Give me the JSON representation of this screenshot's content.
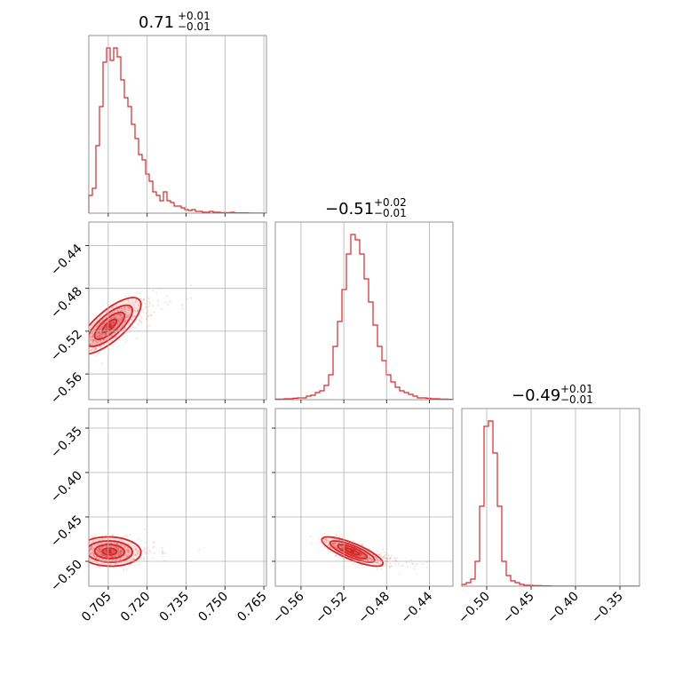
{
  "chart_data": {
    "type": "corner",
    "color": "#d62728",
    "parameters": [
      {
        "title": {
          "value": "0.71",
          "plus": "+0.01",
          "minus": "−0.01"
        },
        "range": [
          0.6975,
          0.766
        ],
        "ticks": [
          0.705,
          0.72,
          0.735,
          0.75,
          0.765
        ],
        "tick_labels": [
          "0.705",
          "0.720",
          "0.735",
          "0.750",
          "0.765"
        ],
        "histogram": [
          0.1,
          0.14,
          0.38,
          0.6,
          0.85,
          0.93,
          0.86,
          0.93,
          0.88,
          0.75,
          0.65,
          0.6,
          0.5,
          0.42,
          0.33,
          0.3,
          0.22,
          0.18,
          0.12,
          0.1,
          0.07,
          0.12,
          0.07,
          0.06,
          0.04,
          0.04,
          0.03,
          0.02,
          0.015,
          0.02,
          0.01,
          0.01,
          0.005,
          0.005,
          0.01,
          0.005,
          0.005,
          0.003,
          0.003,
          0.003,
          0.005,
          0.002,
          0.002,
          0.002,
          0.002,
          0.001,
          0.001,
          0.001,
          0.001,
          0.001
        ]
      },
      {
        "title": {
          "value": "−0.51",
          "plus": "+0.02",
          "minus": "−0.01"
        },
        "range": [
          -0.584,
          -0.418
        ],
        "ticks": [
          -0.56,
          -0.52,
          -0.48,
          -0.44
        ],
        "tick_labels": [
          "−0.56",
          "−0.52",
          "−0.48",
          "−0.44"
        ],
        "histogram": [
          0.003,
          0.003,
          0.005,
          0.005,
          0.008,
          0.01,
          0.01,
          0.02,
          0.025,
          0.04,
          0.05,
          0.08,
          0.14,
          0.3,
          0.44,
          0.62,
          0.82,
          0.93,
          0.9,
          0.82,
          0.68,
          0.55,
          0.42,
          0.3,
          0.22,
          0.14,
          0.1,
          0.07,
          0.05,
          0.04,
          0.03,
          0.02,
          0.01,
          0.01,
          0.008,
          0.005,
          0.005,
          0.003,
          0.003,
          0.002
        ]
      },
      {
        "title": {
          "value": "−0.49",
          "plus": "+0.01",
          "minus": "−0.01"
        },
        "range": [
          -0.528,
          -0.328
        ],
        "ticks": [
          -0.5,
          -0.45,
          -0.4,
          -0.35
        ],
        "tick_labels": [
          "−0.50",
          "−0.45",
          "−0.40",
          "−0.35"
        ],
        "histogram": [
          0.01,
          0.02,
          0.04,
          0.14,
          0.45,
          0.9,
          0.93,
          0.75,
          0.45,
          0.14,
          0.06,
          0.03,
          0.02,
          0.01,
          0.005,
          0.005,
          0.003,
          0.003,
          0.002,
          0.002,
          0.001,
          0.001,
          0.001,
          0.001,
          0.001,
          0.001,
          0.001,
          0.001,
          0.001,
          0.001,
          0.001,
          0.001,
          0.001,
          0.001,
          0.001,
          0.001,
          0.001,
          0.001,
          0.001,
          0.001
        ]
      }
    ],
    "pairs": [
      {
        "x_param": 0,
        "y_param": 1,
        "mean": [
          0.7055,
          -0.515
        ],
        "sd": [
          0.0055,
          0.012
        ],
        "rho": 0.75
      },
      {
        "x_param": 0,
        "y_param": 2,
        "mean": [
          0.7055,
          -0.489
        ],
        "sd": [
          0.0055,
          0.0075
        ],
        "rho": -0.05
      },
      {
        "x_param": 1,
        "y_param": 2,
        "mean": [
          -0.512,
          -0.489
        ],
        "sd": [
          0.013,
          0.0075
        ],
        "rho": -0.8
      }
    ],
    "grid": true
  }
}
